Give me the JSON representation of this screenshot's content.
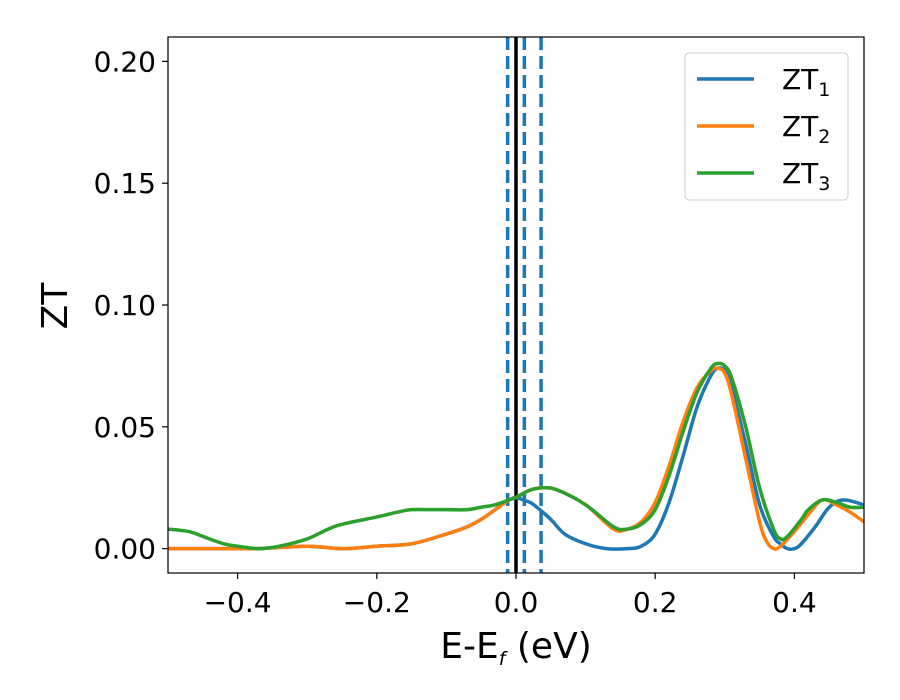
{
  "chart_data": {
    "type": "line",
    "title": "",
    "xlabel": "E-E",
    "xlabel_sub": "f",
    "xlabel_unit": " (eV)",
    "ylabel": "ZT",
    "xlim": [
      -0.5,
      0.5
    ],
    "ylim": [
      -0.01,
      0.21
    ],
    "xticks": [
      -0.4,
      -0.2,
      0.0,
      0.2,
      0.4
    ],
    "xtick_labels": [
      "−0.4",
      "−0.2",
      "0.0",
      "0.2",
      "0.4"
    ],
    "yticks": [
      0.0,
      0.05,
      0.1,
      0.15,
      0.2
    ],
    "ytick_labels": [
      "0.00",
      "0.05",
      "0.10",
      "0.15",
      "0.20"
    ],
    "grid": false,
    "legend_position": "top-right",
    "series": [
      {
        "name": "ZT",
        "name_sub": "1",
        "color": "#1f77b4",
        "x": [
          -0.5,
          -0.45,
          -0.4,
          -0.37,
          -0.3,
          -0.25,
          -0.2,
          -0.15,
          -0.1,
          -0.07,
          -0.05,
          -0.03,
          -0.01,
          0.0,
          0.01,
          0.02,
          0.03,
          0.05,
          0.07,
          0.1,
          0.13,
          0.16,
          0.18,
          0.2,
          0.22,
          0.24,
          0.26,
          0.28,
          0.29,
          0.3,
          0.31,
          0.33,
          0.35,
          0.37,
          0.38,
          0.39,
          0.4,
          0.41,
          0.43,
          0.45,
          0.47,
          0.5
        ],
        "y": [
          0.0,
          0.0,
          0.0,
          0.0,
          0.001,
          0.0,
          0.001,
          0.002,
          0.006,
          0.009,
          0.012,
          0.016,
          0.02,
          0.021,
          0.02,
          0.019,
          0.017,
          0.012,
          0.006,
          0.002,
          0.0,
          0.0,
          0.001,
          0.006,
          0.019,
          0.038,
          0.058,
          0.071,
          0.074,
          0.073,
          0.066,
          0.043,
          0.018,
          0.005,
          0.002,
          0.0,
          0.0,
          0.002,
          0.009,
          0.017,
          0.02,
          0.018
        ]
      },
      {
        "name": "ZT",
        "name_sub": "2",
        "color": "#ff7f0e",
        "x": [
          -0.5,
          -0.45,
          -0.4,
          -0.37,
          -0.3,
          -0.25,
          -0.2,
          -0.15,
          -0.1,
          -0.07,
          -0.05,
          -0.03,
          -0.01,
          0.0,
          0.02,
          0.04,
          0.06,
          0.1,
          0.14,
          0.16,
          0.18,
          0.2,
          0.22,
          0.24,
          0.26,
          0.28,
          0.29,
          0.3,
          0.31,
          0.33,
          0.35,
          0.36,
          0.37,
          0.38,
          0.4,
          0.42,
          0.44,
          0.46,
          0.48,
          0.5
        ],
        "y": [
          0.0,
          0.0,
          0.0,
          0.0,
          0.001,
          0.0,
          0.001,
          0.002,
          0.006,
          0.009,
          0.012,
          0.016,
          0.02,
          0.021,
          0.024,
          0.025,
          0.024,
          0.018,
          0.008,
          0.008,
          0.011,
          0.019,
          0.034,
          0.052,
          0.066,
          0.073,
          0.074,
          0.072,
          0.063,
          0.037,
          0.011,
          0.003,
          0.0,
          0.001,
          0.007,
          0.014,
          0.02,
          0.018,
          0.015,
          0.011
        ]
      },
      {
        "name": "ZT",
        "name_sub": "3",
        "color": "#2ca02c",
        "x": [
          -0.5,
          -0.47,
          -0.45,
          -0.42,
          -0.4,
          -0.37,
          -0.34,
          -0.3,
          -0.27,
          -0.25,
          -0.2,
          -0.17,
          -0.15,
          -0.12,
          -0.1,
          -0.07,
          -0.05,
          -0.03,
          -0.01,
          0.0,
          0.02,
          0.04,
          0.06,
          0.1,
          0.14,
          0.16,
          0.18,
          0.2,
          0.22,
          0.24,
          0.26,
          0.28,
          0.29,
          0.3,
          0.31,
          0.33,
          0.35,
          0.37,
          0.38,
          0.39,
          0.41,
          0.42,
          0.44,
          0.46,
          0.48,
          0.5
        ],
        "y": [
          0.008,
          0.007,
          0.005,
          0.002,
          0.001,
          0.0,
          0.001,
          0.004,
          0.008,
          0.01,
          0.013,
          0.015,
          0.016,
          0.016,
          0.016,
          0.016,
          0.017,
          0.018,
          0.02,
          0.021,
          0.024,
          0.025,
          0.024,
          0.018,
          0.009,
          0.008,
          0.01,
          0.016,
          0.03,
          0.048,
          0.064,
          0.074,
          0.076,
          0.075,
          0.07,
          0.05,
          0.025,
          0.008,
          0.004,
          0.005,
          0.012,
          0.016,
          0.02,
          0.019,
          0.017,
          0.017
        ]
      }
    ],
    "reference_lines": [
      {
        "x": 0.0,
        "style": "solid",
        "color": "#000000"
      },
      {
        "x": -0.012,
        "style": "dashed",
        "color": "#1f77b4"
      },
      {
        "x": 0.012,
        "style": "dashed",
        "color": "#1f77b4"
      },
      {
        "x": 0.036,
        "style": "dashed",
        "color": "#1f77b4"
      }
    ]
  }
}
